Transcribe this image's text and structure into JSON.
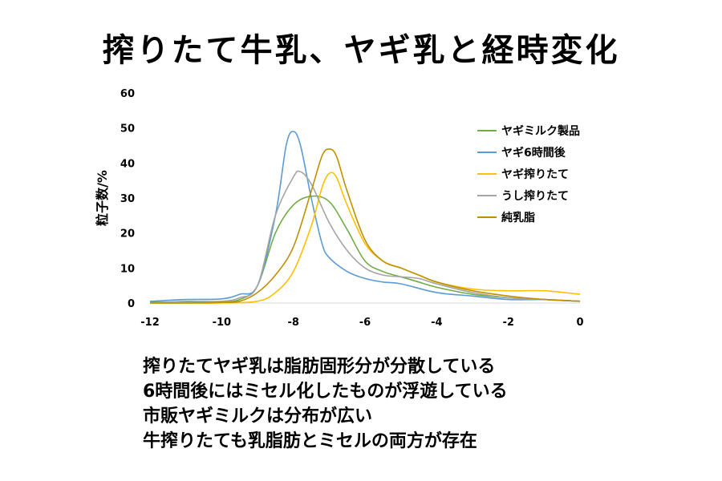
{
  "page": {
    "title": "搾りたて牛乳、ヤギ乳と経時変化",
    "notes": [
      "搾りたてヤギ乳は脂肪固形分が分散している",
      "6時間後にはミセル化したものが浮遊している",
      "市販ヤギミルクは分布が広い",
      "牛搾りたても乳脂肪とミセルの両方が存在"
    ]
  },
  "chart_data": {
    "type": "line",
    "title": "",
    "xlabel": "",
    "ylabel": "粒子数/%",
    "xlim": [
      -12,
      0
    ],
    "ylim": [
      0,
      60
    ],
    "xticks": [
      -12,
      -10,
      -8,
      -6,
      -4,
      -2,
      0
    ],
    "yticks": [
      0,
      10,
      20,
      30,
      40,
      50,
      60
    ],
    "grid": false,
    "legend_position": "right",
    "series": [
      {
        "name": "ヤギミルク製品",
        "color": "#70ad47",
        "x": [
          -12,
          -11,
          -10,
          -9.5,
          -9,
          -8.5,
          -8,
          -7.5,
          -7,
          -6.5,
          -6,
          -5.5,
          -5,
          -4.5,
          -4,
          -3,
          -2,
          -1,
          0
        ],
        "y": [
          0.3,
          0.3,
          0.4,
          1,
          5,
          20,
          28,
          30.5,
          29,
          21,
          12,
          9,
          7.5,
          6,
          4.5,
          2.5,
          1.5,
          1,
          0.5
        ]
      },
      {
        "name": "ヤギ6時間後",
        "color": "#5b9bd5",
        "x": [
          -12,
          -11,
          -10,
          -9.5,
          -9,
          -8.5,
          -8.2,
          -8,
          -7.8,
          -7.5,
          -7.2,
          -7,
          -6.5,
          -6,
          -5.5,
          -5,
          -4,
          -3,
          -2,
          -1,
          0
        ],
        "y": [
          0.5,
          1,
          1.2,
          2.5,
          5,
          25,
          45,
          49,
          45,
          30,
          17,
          13,
          9,
          7,
          6,
          5.5,
          3,
          2,
          1,
          1,
          0.5
        ]
      },
      {
        "name": "ヤギ搾りたて",
        "color": "#ffc000",
        "x": [
          -12,
          -11,
          -10,
          -9,
          -8.5,
          -8,
          -7.5,
          -7.2,
          -7,
          -6.8,
          -6.5,
          -6,
          -5.5,
          -5,
          -4.5,
          -4,
          -3,
          -2,
          -1,
          0
        ],
        "y": [
          0,
          0,
          0,
          0.5,
          3,
          9,
          22,
          33,
          37,
          36,
          28,
          17,
          12,
          10,
          8,
          6,
          4,
          3.5,
          3.5,
          2.5
        ]
      },
      {
        "name": "うし搾りたて",
        "color": "#a5a5a5",
        "x": [
          -12,
          -11,
          -10,
          -9.5,
          -9,
          -8.5,
          -8,
          -7.8,
          -7.5,
          -7,
          -6.5,
          -6,
          -5.5,
          -5,
          -4.5,
          -4,
          -3,
          -2,
          -1,
          0
        ],
        "y": [
          0,
          0.5,
          0.5,
          1.5,
          5,
          25,
          36,
          37.5,
          34,
          23,
          15,
          10,
          8,
          7.5,
          7,
          5.5,
          3,
          1.5,
          1,
          0.5
        ]
      },
      {
        "name": "純乳脂",
        "color": "#bf9000",
        "x": [
          -12,
          -11,
          -10,
          -9.5,
          -9,
          -8.5,
          -8,
          -7.5,
          -7.2,
          -7,
          -6.8,
          -6.5,
          -6,
          -5.5,
          -5,
          -4.5,
          -4,
          -3,
          -2,
          -1,
          0
        ],
        "y": [
          0,
          0,
          0.2,
          0.5,
          3,
          8,
          16,
          32,
          42,
          44,
          42,
          32,
          18,
          12,
          10,
          8,
          6,
          3.5,
          2,
          1,
          0.5
        ]
      }
    ]
  }
}
